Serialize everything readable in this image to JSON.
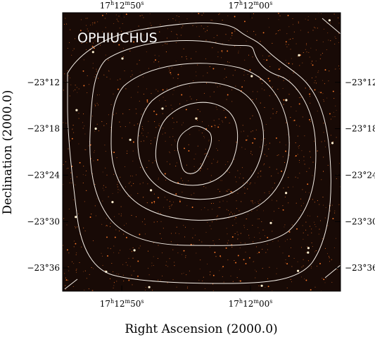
{
  "chart_data": {
    "type": "contour",
    "title": "OPHIUCHUS",
    "xlabel": "Right Ascension (2000.0)",
    "ylabel": "Declination (2000.0)",
    "colors": {
      "background": "#180a06",
      "stars": "#ff7a2a",
      "star_core": "#fff1d0",
      "contour": "#f3ede6",
      "frame": "#000000"
    },
    "x_axis": {
      "ticks": [
        {
          "value": 770,
          "label": "17h12m50s"
        },
        {
          "value": 720,
          "label": "17h12m00s"
        }
      ],
      "range_seconds_of_time": [
        793,
        685
      ]
    },
    "y_axis": {
      "ticks": [
        {
          "value": -23.2,
          "label": "−23°12"
        },
        {
          "value": -23.3,
          "label": "−23°18"
        },
        {
          "value": -23.4,
          "label": "−23°24"
        },
        {
          "value": -23.5,
          "label": "−23°30"
        },
        {
          "value": -23.6,
          "label": "−23°36"
        }
      ],
      "range_degrees": [
        -23.05,
        -23.65
      ]
    },
    "contour_levels": 6,
    "grid": false,
    "legend": "none"
  }
}
